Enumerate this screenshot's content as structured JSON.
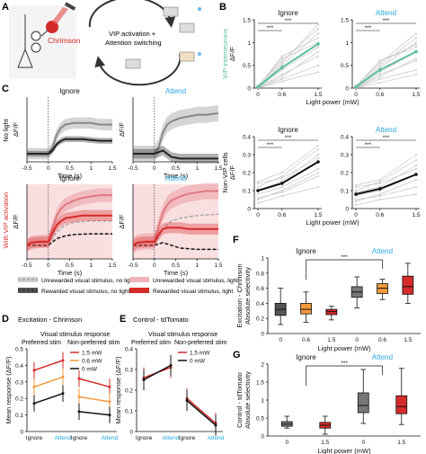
{
  "colors": {
    "green": "#5bbf9c",
    "cyan": "#27a8e0",
    "red": "#d62b2b",
    "orange": "#f39a3c",
    "black": "#111111",
    "grey": "#999999",
    "pink": "#f6c9cc"
  },
  "panels": {
    "A": {
      "letter": "A",
      "label_chrimson": "Chrimson",
      "label_vip": "VIP activation +",
      "label_switch": "Attention switching"
    },
    "B": {
      "letter": "B"
    },
    "C": {
      "letter": "C",
      "ylabel_nolight": "No light",
      "ylabel_vip": "With VIP activation",
      "legend": [
        "Unrewarded visual stimulus, no light",
        "Rewarded visual stimulus, no light",
        "Unrewarded visual stimulus, light",
        "Rewarded visual stimulus, light"
      ]
    },
    "D": {
      "letter": "D",
      "title": "Excitation - Chrimson",
      "subtitle": "Visual stimulus response",
      "pref": "Preferred stim",
      "nonpref": "Non-preferred stim"
    },
    "E": {
      "letter": "E",
      "title": "Control - tdTomato",
      "subtitle": "Visual stimulus response",
      "pref": "Preferred stim",
      "nonpref": "Non-preferred stim"
    },
    "F": {
      "letter": "F"
    },
    "G": {
      "letter": "G"
    }
  },
  "chart_data": [
    {
      "id": "B_vip_ignore",
      "type": "line",
      "title": "Ignore",
      "ylabel": "ΔF/F",
      "ylabel2": "VIP interneurons",
      "xlabel": "Light power (mW)",
      "x": [
        0,
        0.6,
        1.5
      ],
      "xlim": [
        0,
        1.5
      ],
      "ylim": [
        0,
        1.5
      ],
      "xticks": [
        "0",
        "0.6",
        "1.5"
      ],
      "yticks": [
        0,
        0.5,
        1,
        1.5
      ],
      "mean": [
        0.03,
        0.45,
        0.97
      ],
      "indiv": [
        [
          0.0,
          0.3,
          0.7
        ],
        [
          0.02,
          0.5,
          1.2
        ],
        [
          0.05,
          0.6,
          1.3
        ],
        [
          0.0,
          0.2,
          0.5
        ],
        [
          0.03,
          0.7,
          1.1
        ],
        [
          0.0,
          0.4,
          0.9
        ],
        [
          0.02,
          0.55,
          1.4
        ],
        [
          0.01,
          0.25,
          0.8
        ],
        [
          0.0,
          0.15,
          0.35
        ],
        [
          0.04,
          0.65,
          1.0
        ]
      ],
      "sig": [
        "***",
        "***"
      ]
    },
    {
      "id": "B_vip_attend",
      "type": "line",
      "title": "Attend",
      "x": [
        0,
        0.6,
        1.5
      ],
      "xlim": [
        0,
        1.5
      ],
      "ylim": [
        0,
        1.5
      ],
      "xticks": [
        "0",
        "0.6",
        "1.5"
      ],
      "yticks": [
        0,
        0.5,
        1,
        1.5
      ],
      "mean": [
        0.03,
        0.4,
        0.8
      ],
      "indiv": [
        [
          0.0,
          0.3,
          0.6
        ],
        [
          0.02,
          0.45,
          1.0
        ],
        [
          0.05,
          0.55,
          1.2
        ],
        [
          0.0,
          0.2,
          0.4
        ],
        [
          0.03,
          0.6,
          0.95
        ],
        [
          0.0,
          0.35,
          0.8
        ],
        [
          0.02,
          0.5,
          1.1
        ],
        [
          0.01,
          0.25,
          0.65
        ],
        [
          0.0,
          0.12,
          0.3
        ],
        [
          0.04,
          0.6,
          0.9
        ]
      ],
      "sig": [
        "***",
        "***"
      ]
    },
    {
      "id": "B_nonvip_ignore",
      "type": "line",
      "title": "Ignore",
      "ylabel": "ΔF/F",
      "ylabel2": "Non-VIP cells",
      "xlabel": "Light power (mW)",
      "x": [
        0,
        0.6,
        1.5
      ],
      "xlim": [
        0,
        1.5
      ],
      "ylim": [
        0,
        0.4
      ],
      "xticks": [
        "0",
        "0.6",
        "1.5"
      ],
      "yticks": [
        0,
        0.1,
        0.2,
        0.3,
        0.4
      ],
      "mean": [
        0.1,
        0.14,
        0.26
      ],
      "indiv": [
        [
          0.05,
          0.1,
          0.2
        ],
        [
          0.12,
          0.18,
          0.33
        ],
        [
          0.08,
          0.12,
          0.22
        ],
        [
          0.15,
          0.2,
          0.35
        ],
        [
          0.06,
          0.09,
          0.18
        ],
        [
          0.1,
          0.15,
          0.3
        ],
        [
          0.03,
          0.07,
          0.12
        ],
        [
          0.14,
          0.17,
          0.28
        ]
      ],
      "sig": [
        "***",
        "***"
      ]
    },
    {
      "id": "B_nonvip_attend",
      "type": "line",
      "title": "Attend",
      "x": [
        0,
        0.6,
        1.5
      ],
      "xlim": [
        0,
        1.5
      ],
      "ylim": [
        0,
        0.4
      ],
      "xticks": [
        "0",
        "0.6",
        "1.5"
      ],
      "yticks": [
        0,
        0.1,
        0.2,
        0.3,
        0.4
      ],
      "mean": [
        0.08,
        0.11,
        0.19
      ],
      "indiv": [
        [
          0.04,
          0.08,
          0.16
        ],
        [
          0.1,
          0.15,
          0.27
        ],
        [
          0.07,
          0.1,
          0.19
        ],
        [
          0.13,
          0.16,
          0.3
        ],
        [
          0.05,
          0.07,
          0.12
        ],
        [
          0.09,
          0.12,
          0.24
        ],
        [
          0.02,
          0.05,
          0.08
        ],
        [
          0.12,
          0.14,
          0.22
        ]
      ],
      "sig": [
        "***",
        "***"
      ]
    },
    {
      "id": "C_nolight_ignore",
      "type": "area",
      "title": "Ignore",
      "ylabel": "ΔF/F",
      "xlabel": "Time (s)",
      "xlim": [
        -0.5,
        1.5
      ],
      "xticks": [
        "-0.5",
        "0",
        "0.5",
        "1",
        "1.5"
      ],
      "ylim": [
        -0.05,
        0.35
      ],
      "series": [
        {
          "name": "unrewarded",
          "x": [
            -0.5,
            0,
            0.1,
            0.2,
            0.3,
            0.4,
            0.6,
            0.8,
            1.0,
            1.2,
            1.5
          ],
          "y": [
            0,
            0,
            0.04,
            0.12,
            0.16,
            0.18,
            0.19,
            0.19,
            0.19,
            0.18,
            0.18
          ],
          "sem": 0.035
        },
        {
          "name": "rewarded",
          "x": [
            -0.5,
            0,
            0.1,
            0.2,
            0.3,
            0.4,
            0.6,
            0.8,
            1.0,
            1.2,
            1.5
          ],
          "y": [
            0,
            0,
            0.02,
            0.06,
            0.08,
            0.09,
            0.09,
            0.09,
            0.085,
            0.08,
            0.08
          ],
          "sem": 0.018
        }
      ]
    },
    {
      "id": "C_nolight_attend",
      "type": "area",
      "title": "Attend",
      "ylabel": "ΔF/F",
      "xlabel": "Time (s)",
      "xlim": [
        -0.5,
        1.5
      ],
      "xticks": [
        "-0.5",
        "0",
        "0.5",
        "1",
        "1.5"
      ],
      "ylim": [
        -0.05,
        0.35
      ],
      "series": [
        {
          "name": "unrewarded",
          "x": [
            -0.5,
            0,
            0.1,
            0.2,
            0.3,
            0.4,
            0.6,
            0.8,
            1.0,
            1.2,
            1.5
          ],
          "y": [
            0,
            0,
            0.04,
            0.13,
            0.18,
            0.2,
            0.22,
            0.23,
            0.24,
            0.24,
            0.25
          ],
          "sem": 0.05
        },
        {
          "name": "rewarded",
          "x": [
            -0.5,
            0,
            0.1,
            0.2,
            0.3,
            0.4,
            0.6,
            0.8,
            1.0,
            1.2,
            1.5
          ],
          "y": [
            0,
            0,
            0.01,
            0.02,
            0.0,
            -0.02,
            -0.03,
            -0.03,
            -0.03,
            -0.03,
            -0.03
          ],
          "sem": 0.03
        }
      ]
    },
    {
      "id": "C_light_ignore",
      "type": "area",
      "title": "Ignore",
      "ylabel": "ΔF/F",
      "xlabel": "Time (s)",
      "xlim": [
        -0.5,
        1.5
      ],
      "xticks": [
        "-0.5",
        "0",
        "0.5",
        "1",
        "1.5"
      ],
      "ylim": [
        -0.1,
        0.45
      ],
      "light_window": [
        -0.5,
        1.5
      ],
      "series": [
        {
          "name": "unrewarded, no light",
          "x": [
            -0.5,
            0,
            0.2,
            0.4,
            0.6,
            1.0,
            1.5
          ],
          "y": [
            0,
            0,
            0.1,
            0.15,
            0.17,
            0.18,
            0.18
          ],
          "sem": 0,
          "dashed": true,
          "color": "#aaaaaa"
        },
        {
          "name": "rewarded, no light",
          "x": [
            -0.5,
            0,
            0.2,
            0.4,
            0.6,
            1.0,
            1.5
          ],
          "y": [
            0,
            0,
            0.05,
            0.07,
            0.08,
            0.085,
            0.085
          ],
          "sem": 0,
          "dashed": true,
          "color": "#111111"
        },
        {
          "name": "unrewarded, light",
          "x": [
            -0.5,
            -0.4,
            -0.2,
            0,
            0.1,
            0.2,
            0.3,
            0.4,
            0.6,
            0.8,
            1.0,
            1.2,
            1.5
          ],
          "y": [
            0,
            0.02,
            0.03,
            0.03,
            0.13,
            0.22,
            0.27,
            0.3,
            0.33,
            0.35,
            0.36,
            0.37,
            0.37
          ],
          "sem": 0.05,
          "color": "#e07880"
        },
        {
          "name": "rewarded, light",
          "x": [
            -0.5,
            -0.4,
            -0.2,
            0,
            0.1,
            0.2,
            0.3,
            0.4,
            0.6,
            0.8,
            1.0,
            1.2,
            1.5
          ],
          "y": [
            0,
            0.02,
            0.025,
            0.025,
            0.09,
            0.15,
            0.18,
            0.2,
            0.21,
            0.22,
            0.22,
            0.22,
            0.22
          ],
          "sem": 0.04,
          "color": "#d62b2b"
        }
      ]
    },
    {
      "id": "C_light_attend",
      "type": "area",
      "title": "Attend",
      "ylabel": "ΔF/F",
      "xlabel": "Time (s)",
      "xlim": [
        -0.5,
        1.5
      ],
      "xticks": [
        "-0.5",
        "0",
        "0.5",
        "1",
        "1.5"
      ],
      "ylim": [
        -0.1,
        0.45
      ],
      "light_window": [
        -0.5,
        1.5
      ],
      "series": [
        {
          "name": "unrewarded, no light",
          "x": [
            -0.5,
            0,
            0.2,
            0.4,
            0.6,
            1.0,
            1.5
          ],
          "y": [
            0,
            0,
            0.12,
            0.18,
            0.2,
            0.22,
            0.23
          ],
          "sem": 0,
          "dashed": true,
          "color": "#aaaaaa"
        },
        {
          "name": "rewarded, no light",
          "x": [
            -0.5,
            0,
            0.2,
            0.4,
            0.6,
            1.0,
            1.5
          ],
          "y": [
            0,
            0,
            0.02,
            0.0,
            -0.02,
            -0.03,
            -0.03
          ],
          "sem": 0,
          "dashed": true,
          "color": "#111111"
        },
        {
          "name": "unrewarded, light",
          "x": [
            -0.5,
            -0.4,
            -0.2,
            0,
            0.1,
            0.2,
            0.3,
            0.4,
            0.6,
            0.8,
            1.0,
            1.2,
            1.5
          ],
          "y": [
            0,
            0.02,
            0.03,
            0.03,
            0.14,
            0.24,
            0.3,
            0.33,
            0.36,
            0.38,
            0.39,
            0.4,
            0.4
          ],
          "sem": 0.06,
          "color": "#e07880"
        },
        {
          "name": "rewarded, light",
          "x": [
            -0.5,
            -0.4,
            -0.2,
            0,
            0.1,
            0.2,
            0.3,
            0.4,
            0.6,
            0.8,
            1.0,
            1.2,
            1.5
          ],
          "y": [
            0,
            0.02,
            0.025,
            0.025,
            0.08,
            0.12,
            0.13,
            0.13,
            0.13,
            0.12,
            0.12,
            0.12,
            0.12
          ],
          "sem": 0.04,
          "color": "#d62b2b"
        }
      ]
    },
    {
      "id": "D",
      "type": "line",
      "ylabel": "Mean response (ΔF/F)",
      "categories": [
        "Ignore",
        "Attend"
      ],
      "ylim": [
        0,
        0.5
      ],
      "yticks": [
        0,
        0.1,
        0.2,
        0.3,
        0.4,
        0.5
      ],
      "series": [
        {
          "name": "1.5 mW",
          "color": "#d62b2b",
          "pref": [
            0.37,
            0.43
          ],
          "nonpref": [
            0.32,
            0.27
          ],
          "err": 0.05
        },
        {
          "name": "0.6 mW",
          "color": "#f39a3c",
          "pref": [
            0.27,
            0.33
          ],
          "nonpref": [
            0.21,
            0.18
          ],
          "err": 0.05
        },
        {
          "name": "0 mW",
          "color": "#111111",
          "pref": [
            0.17,
            0.23
          ],
          "nonpref": [
            0.12,
            0.1
          ],
          "err": 0.05
        }
      ]
    },
    {
      "id": "E",
      "type": "line",
      "ylabel": "Mean response (ΔF/F)",
      "categories": [
        "Ignore",
        "Attend"
      ],
      "ylim": [
        0,
        0.4
      ],
      "yticks": [
        0,
        0.1,
        0.2,
        0.3,
        0.4
      ],
      "series": [
        {
          "name": "1.5 mW",
          "color": "#d62b2b",
          "pref": [
            0.26,
            0.31
          ],
          "nonpref": [
            0.16,
            0.04
          ],
          "err": 0.05
        },
        {
          "name": "0 mW",
          "color": "#111111",
          "pref": [
            0.25,
            0.32
          ],
          "nonpref": [
            0.15,
            0.03
          ],
          "err": 0.05
        }
      ]
    },
    {
      "id": "F",
      "type": "box",
      "title_left": "Ignore",
      "title_right": "Attend",
      "ylabel": "Absolute selectivity",
      "ylabel2": "Excitation - Chrimson",
      "xlabel": "Light power (mW)",
      "ylim": [
        0,
        1
      ],
      "yticks": [
        0,
        0.2,
        0.4,
        0.6,
        0.8,
        1
      ],
      "sig": "***",
      "groups": [
        {
          "group": "Ignore",
          "x": "0",
          "color": "#555555",
          "whislo": 0.12,
          "q1": 0.24,
          "med": 0.32,
          "q3": 0.4,
          "whishi": 0.6
        },
        {
          "group": "Ignore",
          "x": "0.6",
          "color": "#f39a3c",
          "whislo": 0.15,
          "q1": 0.26,
          "med": 0.32,
          "q3": 0.4,
          "whishi": 0.55
        },
        {
          "group": "Ignore",
          "x": "1.5",
          "color": "#d62b2b",
          "whislo": 0.18,
          "q1": 0.25,
          "med": 0.29,
          "q3": 0.32,
          "whishi": 0.36
        },
        {
          "group": "Attend",
          "x": "0",
          "color": "#777777",
          "whislo": 0.34,
          "q1": 0.48,
          "med": 0.55,
          "q3": 0.62,
          "whishi": 0.75
        },
        {
          "group": "Attend",
          "x": "0.6",
          "color": "#f39a3c",
          "whislo": 0.45,
          "q1": 0.53,
          "med": 0.6,
          "q3": 0.66,
          "whishi": 0.72
        },
        {
          "group": "Attend",
          "x": "1.5",
          "color": "#d62b2b",
          "whislo": 0.4,
          "q1": 0.52,
          "med": 0.62,
          "q3": 0.76,
          "whishi": 0.93
        }
      ]
    },
    {
      "id": "G",
      "type": "box",
      "title_left": "Ignore",
      "title_right": "Attend",
      "ylabel": "Absolute selectivity",
      "ylabel2": "Control - tdTomato",
      "xlabel": "Light power (mW)",
      "ylim": [
        0,
        2
      ],
      "yticks": [
        0,
        0.5,
        1,
        1.5,
        2
      ],
      "sig": "***",
      "groups": [
        {
          "group": "Ignore",
          "x": "0",
          "color": "#777777",
          "whislo": 0.22,
          "q1": 0.27,
          "med": 0.33,
          "q3": 0.4,
          "whishi": 0.55
        },
        {
          "group": "Ignore",
          "x": "1.5",
          "color": "#d62b2b",
          "whislo": 0.05,
          "q1": 0.22,
          "med": 0.3,
          "q3": 0.38,
          "whishi": 0.55
        },
        {
          "group": "Attend",
          "x": "0",
          "color": "#777777",
          "whislo": 0.35,
          "q1": 0.65,
          "med": 0.85,
          "q3": 1.2,
          "whishi": 1.85
        },
        {
          "group": "Attend",
          "x": "1.5",
          "color": "#d62b2b",
          "whislo": 0.32,
          "q1": 0.62,
          "med": 0.82,
          "q3": 1.12,
          "whishi": 1.88
        }
      ]
    }
  ]
}
